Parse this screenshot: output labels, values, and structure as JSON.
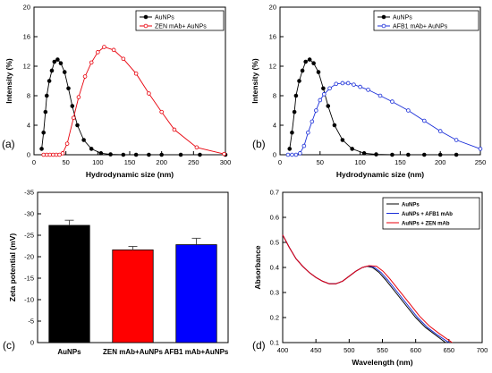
{
  "chart_data": [
    {
      "type": "line",
      "panel_label": "(a)",
      "xlabel": "Hydrodynamic size (nm)",
      "ylabel": "Intensity (%)",
      "xlim": [
        0,
        300
      ],
      "ylim": [
        0,
        20
      ],
      "xticks": [
        0,
        50,
        100,
        150,
        200,
        250,
        300
      ],
      "yticks": [
        0,
        4,
        8,
        12,
        16,
        20
      ],
      "legend_position": "top-left",
      "series": [
        {
          "name": "AuNPs",
          "color": "#000000",
          "marker": "filled-circle",
          "x": [
            12,
            15,
            18,
            20,
            24,
            28,
            32,
            37,
            42,
            48,
            54,
            60,
            68,
            78,
            90,
            105,
            120,
            140,
            160,
            180,
            200,
            230,
            260,
            300
          ],
          "y": [
            0.8,
            3,
            5.8,
            8,
            10,
            11.4,
            12.6,
            12.9,
            12.4,
            11.2,
            9,
            6.6,
            4,
            2,
            0.8,
            0.2,
            0.05,
            0,
            0,
            0,
            0,
            0,
            0,
            0
          ]
        },
        {
          "name": "ZEN mAb+ AuNPs",
          "color": "#e8000b",
          "marker": "open-circle",
          "x": [
            15,
            20,
            25,
            30,
            35,
            40,
            45,
            52,
            62,
            70,
            80,
            90,
            100,
            110,
            125,
            140,
            160,
            180,
            200,
            220,
            255,
            298
          ],
          "y": [
            0,
            0,
            0,
            0,
            0,
            0,
            0.2,
            1.5,
            5,
            7.8,
            10.6,
            12.5,
            13.9,
            14.6,
            14.2,
            13,
            11,
            8.3,
            5.8,
            3.4,
            1,
            0.1
          ]
        }
      ]
    },
    {
      "type": "line",
      "panel_label": "(b)",
      "xlabel": "Hydrodynamic size (nm)",
      "ylabel": "Intensity (%)",
      "xlim": [
        0,
        250
      ],
      "ylim": [
        0,
        20
      ],
      "xticks": [
        0,
        50,
        100,
        150,
        200,
        250
      ],
      "yticks": [
        0,
        4,
        8,
        12,
        16,
        20
      ],
      "legend_position": "top-right",
      "series": [
        {
          "name": "AuNPs",
          "color": "#000000",
          "marker": "filled-circle",
          "x": [
            12,
            15,
            18,
            20,
            24,
            28,
            32,
            37,
            42,
            48,
            54,
            60,
            68,
            78,
            90,
            105,
            120,
            140,
            160,
            180,
            200,
            220
          ],
          "y": [
            0.8,
            3,
            5.8,
            8,
            10,
            11.4,
            12.6,
            12.9,
            12.4,
            11.2,
            9,
            6.6,
            4,
            2,
            0.8,
            0.2,
            0.05,
            0,
            0,
            0,
            0,
            0
          ]
        },
        {
          "name": "AFB1 mAb+ AuNPs",
          "color": "#1a2ed8",
          "marker": "open-circle",
          "x": [
            10,
            15,
            20,
            25,
            30,
            35,
            40,
            45,
            50,
            55,
            62,
            70,
            78,
            85,
            92,
            100,
            110,
            125,
            140,
            160,
            180,
            200,
            220,
            250
          ],
          "y": [
            0,
            0,
            0,
            0.2,
            1.2,
            3,
            4.5,
            6,
            7.4,
            8.2,
            9,
            9.6,
            9.7,
            9.7,
            9.5,
            9.2,
            8.8,
            8,
            7.2,
            6,
            4.6,
            3.2,
            2,
            0.8
          ]
        }
      ]
    },
    {
      "type": "bar",
      "panel_label": "(c)",
      "ylabel": "Zeta potential (mV)",
      "ylim": [
        0,
        -35
      ],
      "yticks": [
        0,
        -5,
        -10,
        -15,
        -20,
        -25,
        -30,
        -35
      ],
      "categories": [
        "AuNPs",
        "ZEN mAb+AuNPs",
        "AFB1 mAb+AuNPs"
      ],
      "values": [
        -27.3,
        -21.6,
        -22.8
      ],
      "errors": [
        1.2,
        0.8,
        1.5
      ],
      "colors": [
        "#000000",
        "#ff0000",
        "#0000ff"
      ]
    },
    {
      "type": "line",
      "panel_label": "(d)",
      "xlabel": "Wavelength (nm)",
      "ylabel": "Absorbance",
      "xlim": [
        400,
        700
      ],
      "ylim": [
        0.1,
        0.7
      ],
      "xticks": [
        400,
        450,
        500,
        550,
        600,
        650,
        700
      ],
      "yticks": [
        0.1,
        0.2,
        0.3,
        0.4,
        0.5,
        0.6,
        0.7
      ],
      "legend_position": "top-right",
      "series": [
        {
          "name": "AuNPs",
          "color": "#000000",
          "x": [
            400,
            410,
            420,
            430,
            440,
            450,
            460,
            470,
            480,
            490,
            500,
            510,
            520,
            527,
            535,
            545,
            555,
            570,
            585,
            600,
            615,
            630,
            645
          ],
          "y": [
            0.53,
            0.48,
            0.435,
            0.405,
            0.38,
            0.36,
            0.345,
            0.335,
            0.335,
            0.345,
            0.365,
            0.385,
            0.4,
            0.405,
            0.4,
            0.38,
            0.35,
            0.3,
            0.25,
            0.2,
            0.16,
            0.13,
            0.1
          ]
        },
        {
          "name": "AuNPs + AFB1 mAb",
          "color": "#1a2ed8",
          "x": [
            400,
            410,
            420,
            430,
            440,
            450,
            460,
            470,
            480,
            490,
            500,
            510,
            520,
            530,
            538,
            548,
            558,
            573,
            588,
            603,
            618,
            633,
            650
          ],
          "y": [
            0.53,
            0.48,
            0.435,
            0.405,
            0.38,
            0.36,
            0.345,
            0.335,
            0.335,
            0.345,
            0.365,
            0.385,
            0.4,
            0.406,
            0.4,
            0.38,
            0.35,
            0.3,
            0.25,
            0.2,
            0.16,
            0.13,
            0.1
          ]
        },
        {
          "name": "AuNPs + ZEN mAb",
          "color": "#e8000b",
          "x": [
            400,
            410,
            420,
            430,
            440,
            450,
            460,
            470,
            480,
            490,
            500,
            510,
            520,
            530,
            541,
            551,
            561,
            576,
            591,
            606,
            621,
            636,
            655
          ],
          "y": [
            0.53,
            0.48,
            0.435,
            0.405,
            0.38,
            0.36,
            0.345,
            0.335,
            0.335,
            0.345,
            0.365,
            0.385,
            0.4,
            0.407,
            0.405,
            0.385,
            0.355,
            0.305,
            0.255,
            0.205,
            0.165,
            0.135,
            0.1
          ]
        }
      ]
    }
  ]
}
